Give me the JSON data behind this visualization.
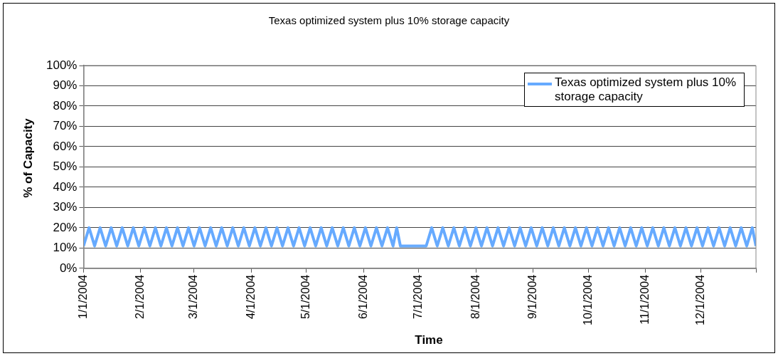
{
  "chart_data": {
    "type": "line",
    "title": "Texas optimized system plus 10% storage capacity",
    "xlabel": "Time",
    "ylabel": "% of Capacity",
    "x": [
      "2004-01-01",
      "2004-01-04",
      "2004-01-07",
      "2004-01-10",
      "2004-01-13",
      "2004-01-16",
      "2004-01-19",
      "2004-01-22",
      "2004-01-25",
      "2004-01-28",
      "2004-01-31",
      "2004-02-03",
      "2004-02-06",
      "2004-02-09",
      "2004-02-12",
      "2004-02-15",
      "2004-02-18",
      "2004-02-21",
      "2004-02-24",
      "2004-02-27",
      "2004-03-01",
      "2004-03-04",
      "2004-03-07",
      "2004-03-10",
      "2004-03-13",
      "2004-03-16",
      "2004-03-19",
      "2004-03-22",
      "2004-03-25",
      "2004-03-28",
      "2004-03-31",
      "2004-04-03",
      "2004-04-06",
      "2004-04-09",
      "2004-04-12",
      "2004-04-15",
      "2004-04-18",
      "2004-04-21",
      "2004-04-24",
      "2004-04-27",
      "2004-04-30",
      "2004-05-03",
      "2004-05-06",
      "2004-05-09",
      "2004-05-12",
      "2004-05-15",
      "2004-05-18",
      "2004-05-21",
      "2004-05-24",
      "2004-05-27",
      "2004-05-30",
      "2004-06-02",
      "2004-06-05",
      "2004-06-08",
      "2004-06-11",
      "2004-06-14",
      "2004-06-17",
      "2004-06-19",
      "2004-06-21",
      "2004-07-05",
      "2004-07-08",
      "2004-07-11",
      "2004-07-14",
      "2004-07-17",
      "2004-07-20",
      "2004-07-23",
      "2004-07-26",
      "2004-07-29",
      "2004-08-01",
      "2004-08-04",
      "2004-08-07",
      "2004-08-10",
      "2004-08-13",
      "2004-08-16",
      "2004-08-19",
      "2004-08-22",
      "2004-08-25",
      "2004-08-28",
      "2004-08-31",
      "2004-09-03",
      "2004-09-06",
      "2004-09-09",
      "2004-09-12",
      "2004-09-15",
      "2004-09-18",
      "2004-09-21",
      "2004-09-24",
      "2004-09-27",
      "2004-09-30",
      "2004-10-03",
      "2004-10-06",
      "2004-10-09",
      "2004-10-12",
      "2004-10-15",
      "2004-10-18",
      "2004-10-21",
      "2004-10-24",
      "2004-10-27",
      "2004-10-30",
      "2004-11-02",
      "2004-11-05",
      "2004-11-08",
      "2004-11-11",
      "2004-11-14",
      "2004-11-17",
      "2004-11-20",
      "2004-11-23",
      "2004-11-26",
      "2004-11-29",
      "2004-12-02",
      "2004-12-05",
      "2004-12-08",
      "2004-12-11",
      "2004-12-14",
      "2004-12-17",
      "2004-12-20",
      "2004-12-23",
      "2004-12-26",
      "2004-12-29",
      "2004-12-31"
    ],
    "series": [
      {
        "name": "Texas optimized system plus 10% storage capacity",
        "color": "#66aaff",
        "values": [
          11,
          20,
          11,
          20,
          11,
          20,
          11,
          20,
          11,
          20,
          11,
          20,
          11,
          20,
          11,
          20,
          11,
          20,
          11,
          20,
          11,
          20,
          11,
          20,
          11,
          20,
          11,
          20,
          11,
          20,
          11,
          20,
          11,
          20,
          11,
          20,
          11,
          20,
          11,
          20,
          11,
          20,
          11,
          20,
          11,
          20,
          11,
          20,
          11,
          20,
          11,
          20,
          11,
          20,
          11,
          20,
          11,
          20,
          11,
          11,
          20,
          11,
          20,
          11,
          20,
          11,
          20,
          11,
          20,
          11,
          20,
          11,
          20,
          11,
          20,
          11,
          20,
          11,
          20,
          11,
          20,
          11,
          20,
          11,
          20,
          11,
          20,
          11,
          20,
          11,
          20,
          11,
          20,
          11,
          20,
          11,
          20,
          11,
          20,
          11,
          20,
          11,
          20,
          11,
          20,
          11,
          20,
          11,
          20,
          11,
          20,
          11,
          20,
          11,
          20,
          11,
          20,
          11,
          20,
          11
        ]
      }
    ],
    "xlim": [
      "2004-01-01",
      "2004-12-31"
    ],
    "xticks": [
      {
        "value": "2004-01-01",
        "label": "1/1/2004"
      },
      {
        "value": "2004-02-01",
        "label": "2/1/2004"
      },
      {
        "value": "2004-03-01",
        "label": "3/1/2004"
      },
      {
        "value": "2004-04-01",
        "label": "4/1/2004"
      },
      {
        "value": "2004-05-01",
        "label": "5/1/2004"
      },
      {
        "value": "2004-06-01",
        "label": "6/1/2004"
      },
      {
        "value": "2004-07-01",
        "label": "7/1/2004"
      },
      {
        "value": "2004-08-01",
        "label": "8/1/2004"
      },
      {
        "value": "2004-09-01",
        "label": "9/1/2004"
      },
      {
        "value": "2004-10-01",
        "label": "10/1/2004"
      },
      {
        "value": "2004-11-01",
        "label": "11/1/2004"
      },
      {
        "value": "2004-12-01",
        "label": "12/1/2004"
      },
      {
        "value": "2004-12-31",
        "label": null
      }
    ],
    "ylim": [
      0,
      100
    ],
    "yticks": [
      {
        "value": 0,
        "label": "0%"
      },
      {
        "value": 10,
        "label": "10%"
      },
      {
        "value": 20,
        "label": "20%"
      },
      {
        "value": 30,
        "label": "30%"
      },
      {
        "value": 40,
        "label": "40%"
      },
      {
        "value": 50,
        "label": "50%"
      },
      {
        "value": 60,
        "label": "60%"
      },
      {
        "value": 70,
        "label": "70%"
      },
      {
        "value": 80,
        "label": "80%"
      },
      {
        "value": 90,
        "label": "90%"
      },
      {
        "value": 100,
        "label": "100%"
      }
    ],
    "grid": "y",
    "legend": "top right",
    "marker": "none",
    "line_style": "solid"
  }
}
